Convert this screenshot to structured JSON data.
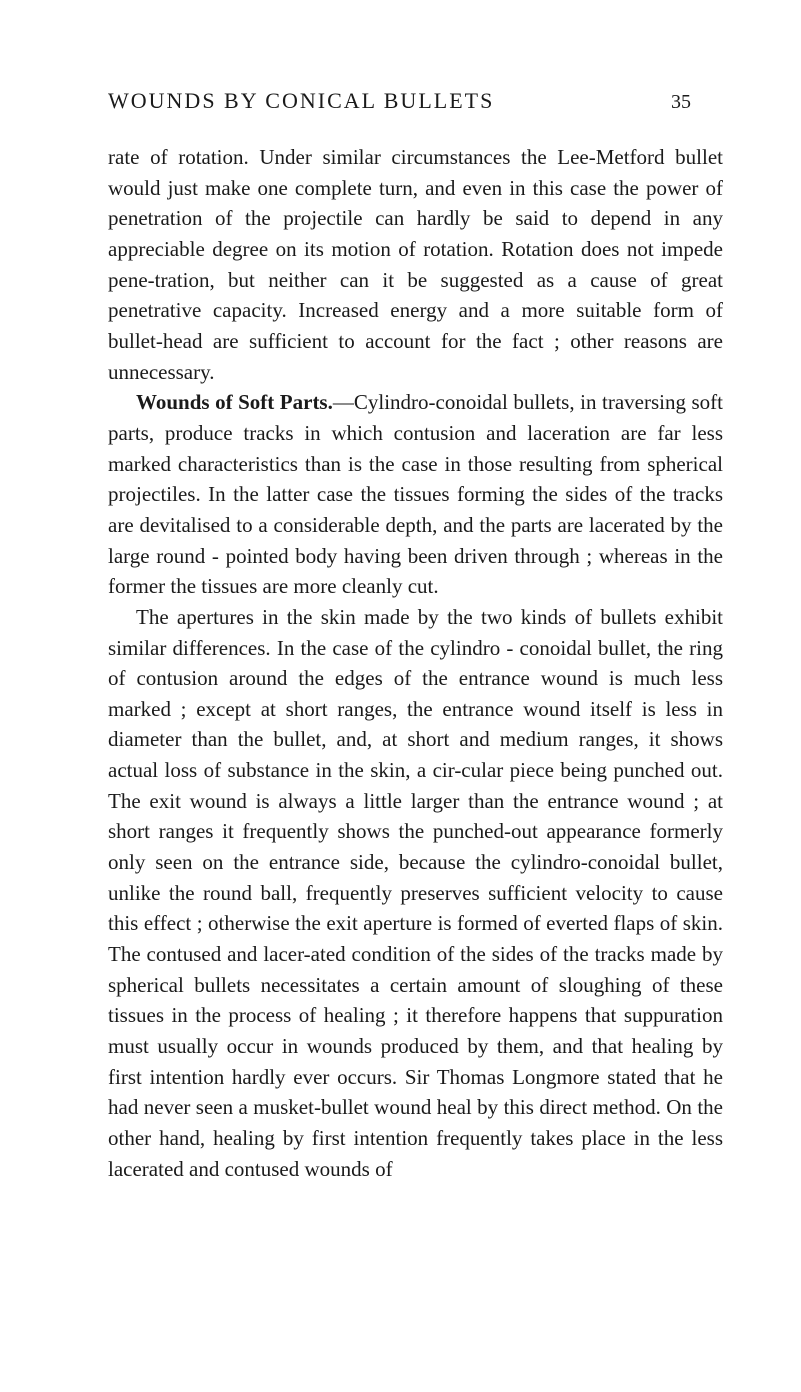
{
  "header": {
    "running_title": "WOUNDS BY CONICAL BULLETS",
    "page_number": "35"
  },
  "paragraphs": {
    "p1": "rate of rotation. Under similar circumstances the Lee-Metford bullet would just make one complete turn, and even in this case the power of penetration of the projectile can hardly be said to depend in any appreciable degree on its motion of rotation. Rotation does not impede pene-tration, but neither can it be suggested as a cause of great penetrative capacity. Increased energy and a more suitable form of bullet-head are sufficient to account for the fact ; other reasons are unnecessary.",
    "p2_heading": "Wounds of Soft Parts.",
    "p2_body": "—Cylindro-conoidal bullets, in traversing soft parts, produce tracks in which contusion and laceration are far less marked characteristics than is the case in those resulting from spherical projectiles. In the latter case the tissues forming the sides of the tracks are devitalised to a considerable depth, and the parts are lacerated by the large round - pointed body having been driven through ; whereas in the former the tissues are more cleanly cut.",
    "p3": "The apertures in the skin made by the two kinds of bullets exhibit similar differences. In the case of the cylindro - conoidal bullet, the ring of contusion around the edges of the entrance wound is much less marked ; except at short ranges, the entrance wound itself is less in diameter than the bullet, and, at short and medium ranges, it shows actual loss of substance in the skin, a cir-cular piece being punched out. The exit wound is always a little larger than the entrance wound ; at short ranges it frequently shows the punched-out appearance formerly only seen on the entrance side, because the cylindro-conoidal bullet, unlike the round ball, frequently preserves sufficient velocity to cause this effect ; otherwise the exit aperture is formed of everted flaps of skin. The contused and lacer-ated condition of the sides of the tracks made by spherical bullets necessitates a certain amount of sloughing of these tissues in the process of healing ; it therefore happens that suppuration must usually occur in wounds produced by them, and that healing by first intention hardly ever occurs. Sir Thomas Longmore stated that he had never seen a musket-bullet wound heal by this direct method. On the other hand, healing by first intention frequently takes place in the less lacerated and contused wounds of"
  },
  "typography": {
    "body_font_size": 21,
    "header_font_size": 22,
    "line_height": 1.46,
    "text_color": "#1a1a1a",
    "background_color": "#ffffff"
  }
}
